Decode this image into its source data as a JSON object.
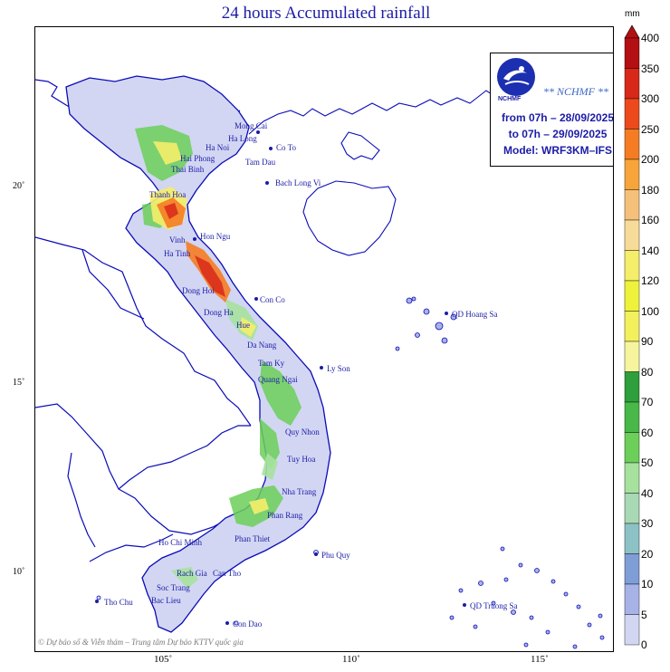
{
  "title": "24 hours Accumulated rainfall",
  "infobox": {
    "logo_text": "NCHMF",
    "org": "** NCHMF **",
    "from": "from 07h – 28/09/2025",
    "to": "to 07h – 29/09/2025",
    "model": "Model: WRF3KM–IFS"
  },
  "credit": "© Dự báo số & Viễn thám – Trung tâm Dự báo KTTV quốc gia",
  "axes": {
    "lat_labels": [
      "20˚",
      "15˚",
      "10˚"
    ],
    "lon_labels": [
      "105˚",
      "110˚",
      "115˚"
    ]
  },
  "colorbar": {
    "unit": "mm",
    "levels": [
      "400",
      "350",
      "300",
      "250",
      "200",
      "180",
      "160",
      "140",
      "120",
      "100",
      "90",
      "80",
      "70",
      "60",
      "50",
      "40",
      "30",
      "20",
      "10",
      "5",
      "0"
    ],
    "colors": [
      "#b40f12",
      "#d8281a",
      "#ec4a1c",
      "#f57c23",
      "#f7a43a",
      "#f5c17a",
      "#f7db98",
      "#f5ee6a",
      "#eef23a",
      "#f3f05e",
      "#f6f59d",
      "#2f9e3c",
      "#48b848",
      "#6ccf5a",
      "#a6e29e",
      "#a8d8b4",
      "#8cc2c6",
      "#7f9ed8",
      "#a7b2e6",
      "#d2d6f2"
    ]
  },
  "places": [
    {
      "name": "Mong Cai"
    },
    {
      "name": "Ha Long"
    },
    {
      "name": "Ha Noi"
    },
    {
      "name": "Co To"
    },
    {
      "name": "Hai Phong"
    },
    {
      "name": "Tam Dau"
    },
    {
      "name": "Thai Binh"
    },
    {
      "name": "Bach Long Vi"
    },
    {
      "name": "Thanh Hoa"
    },
    {
      "name": "Hon Ngu"
    },
    {
      "name": "Vinh"
    },
    {
      "name": "Ha Tinh"
    },
    {
      "name": "Dong Hoi"
    },
    {
      "name": "Con Co"
    },
    {
      "name": "Dong Ha"
    },
    {
      "name": "Hue"
    },
    {
      "name": "QD Hoang Sa"
    },
    {
      "name": "Da Nang"
    },
    {
      "name": "Tam Ky"
    },
    {
      "name": "Ly Son"
    },
    {
      "name": "Quang Ngai"
    },
    {
      "name": "Quy Nhon"
    },
    {
      "name": "Tuy Hoa"
    },
    {
      "name": "Nha Trang"
    },
    {
      "name": "Phan Rang"
    },
    {
      "name": "Phan Thiet"
    },
    {
      "name": "Ho Chi Minh"
    },
    {
      "name": "Phu Quy"
    },
    {
      "name": "Rach Gia"
    },
    {
      "name": "Can Tho"
    },
    {
      "name": "Soc Trang"
    },
    {
      "name": "Tho Chu"
    },
    {
      "name": "Bac Lieu"
    },
    {
      "name": "QD Truong Sa"
    },
    {
      "name": "Con Dao"
    }
  ]
}
